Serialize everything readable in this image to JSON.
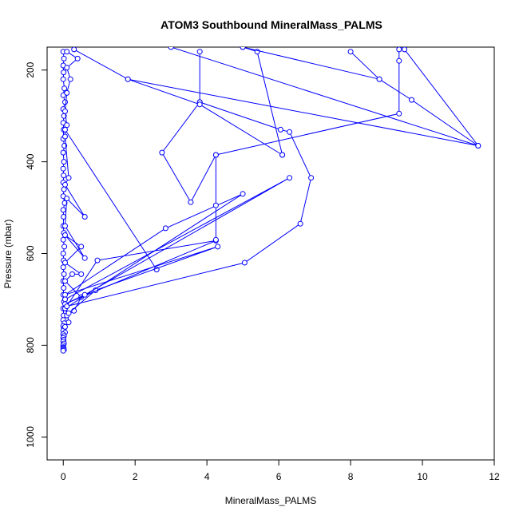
{
  "chart_data": {
    "type": "line",
    "title": "ATOM3 Southbound MineralMass_PALMS",
    "xlabel": "MineralMass_PALMS",
    "ylabel": "Pressure (mbar)",
    "xlim": [
      -0.45,
      12.0
    ],
    "ylim": [
      1050,
      150
    ],
    "y_reversed": true,
    "x_ticks": [
      "0",
      "2",
      "4",
      "6",
      "8",
      "10",
      "12"
    ],
    "y_ticks": [
      "200",
      "400",
      "600",
      "800",
      "1000"
    ],
    "grid": false,
    "series_color": "#0000ff",
    "series": [
      {
        "x": [
          0.0,
          0.02,
          0.0,
          0.01,
          0.0,
          0.03,
          0.0,
          0.05,
          0.0,
          0.02,
          0.0,
          0.01,
          0.0,
          0.03,
          0.0,
          0.02,
          0.0,
          0.01,
          0.0,
          0.02,
          0.0,
          0.04,
          0.0,
          0.01,
          0.0,
          0.02,
          0.0,
          0.03,
          0.0,
          0.01,
          0.0,
          0.02,
          0.0,
          0.01,
          0.0,
          0.02,
          0.0,
          0.01,
          0.0,
          0.03,
          0.0,
          0.02,
          0.0,
          0.05,
          0.0,
          0.02,
          0.0,
          0.01,
          0.0,
          0.02,
          0.0,
          0.0,
          0.01,
          0.0,
          0.02,
          0.0
        ],
        "y": [
          160,
          175,
          190,
          205,
          220,
          240,
          255,
          270,
          285,
          300,
          315,
          330,
          350,
          365,
          380,
          400,
          415,
          430,
          445,
          460,
          475,
          490,
          505,
          520,
          540,
          555,
          570,
          585,
          600,
          615,
          630,
          645,
          660,
          675,
          690,
          705,
          720,
          735,
          745,
          752,
          758,
          763,
          768,
          772,
          776,
          780,
          784,
          788,
          792,
          796,
          800,
          804,
          806,
          808,
          810,
          812
        ]
      },
      {
        "x": [
          0.1,
          0.4,
          0.1,
          0.2,
          0.1,
          0.05,
          0.1
        ],
        "y": [
          160,
          175,
          195,
          220,
          250,
          290,
          320
        ]
      },
      {
        "x": [
          2.6,
          0.05,
          0.05,
          0.15,
          0.05,
          0.6,
          0.1,
          0.05,
          0.6,
          0.05,
          0.5,
          0.05,
          0.5,
          0.25,
          0.05,
          0.5,
          0.3,
          0.1,
          0.05,
          0.15,
          0.05
        ],
        "y": [
          635,
          330,
          345,
          435,
          450,
          520,
          480,
          540,
          610,
          560,
          585,
          620,
          645,
          645,
          660,
          695,
          725,
          735,
          700,
          750,
          760
        ]
      },
      {
        "x": [
          0.15,
          0.9,
          4.3,
          0.05,
          2.85,
          5.0,
          0.05
        ],
        "y": [
          730,
          680,
          585,
          690,
          545,
          470,
          720
        ]
      },
      {
        "x": [
          0.05,
          0.95,
          4.25,
          0.05,
          0.6,
          6.3,
          0.05
        ],
        "y": [
          720,
          615,
          572,
          710,
          690,
          435,
          700
        ]
      },
      {
        "x": [
          0.1,
          5.05,
          6.6,
          6.9,
          6.3,
          6.05,
          3.8,
          3.8
        ],
        "y": [
          715,
          620,
          535,
          435,
          335,
          330,
          270,
          160
        ]
      },
      {
        "x": [
          4.25,
          4.25,
          4.25,
          3.55,
          2.75,
          3.8
        ],
        "y": [
          570,
          495,
          385,
          488,
          380,
          270
        ]
      },
      {
        "x": [
          4.25,
          9.35,
          9.35,
          9.35
        ],
        "y": [
          385,
          295,
          180,
          155
        ]
      },
      {
        "x": [
          6.1,
          5.4,
          5.0
        ],
        "y": [
          385,
          160,
          150
        ]
      },
      {
        "x": [
          6.1,
          3.8,
          1.8,
          0.3
        ],
        "y": [
          385,
          275,
          220,
          155
        ]
      },
      {
        "x": [
          1.8,
          11.55,
          9.5
        ],
        "y": [
          220,
          365,
          155
        ]
      },
      {
        "x": [
          3.0,
          11.55,
          9.7,
          8.8,
          8.0
        ],
        "y": [
          150,
          365,
          265,
          220,
          160
        ]
      },
      {
        "x": [
          8.8,
          5.0
        ],
        "y": [
          220,
          150
        ]
      }
    ]
  }
}
